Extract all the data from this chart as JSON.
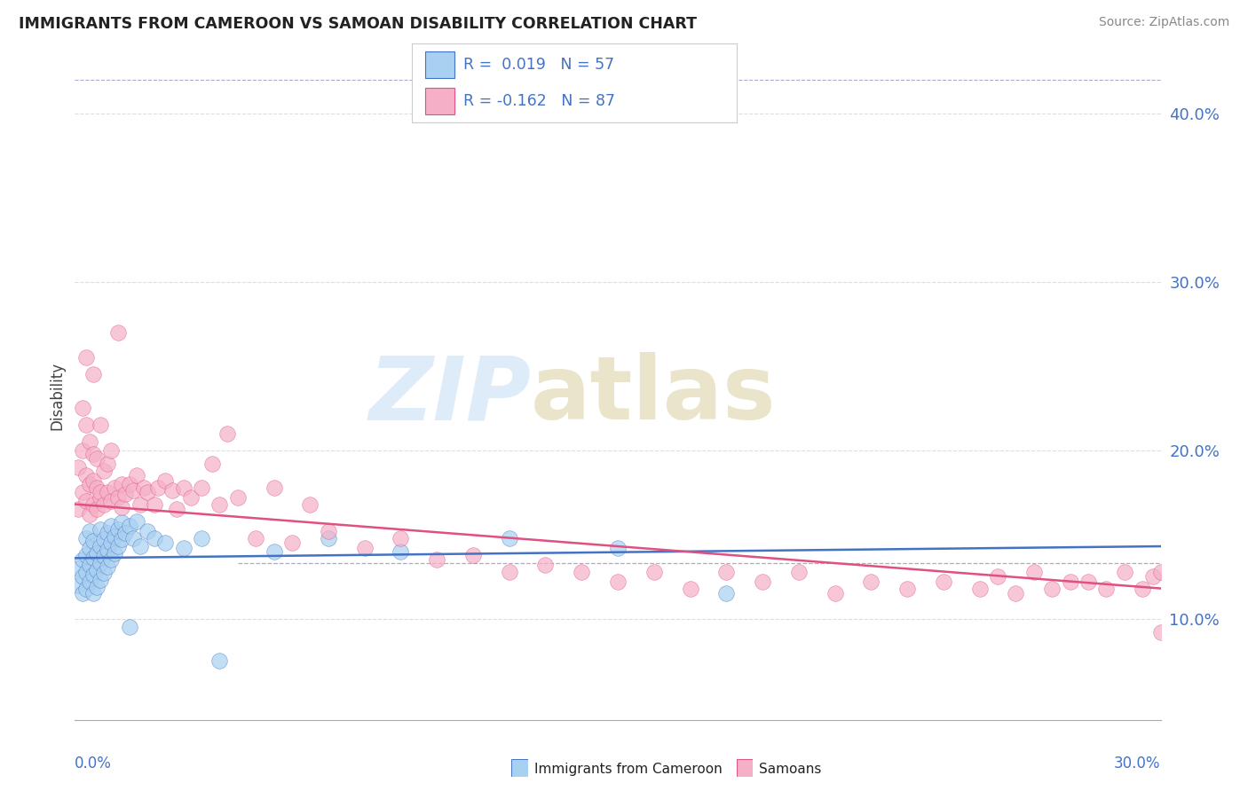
{
  "title": "IMMIGRANTS FROM CAMEROON VS SAMOAN DISABILITY CORRELATION CHART",
  "source": "Source: ZipAtlas.com",
  "ylabel": "Disability",
  "xmin": 0.0,
  "xmax": 0.3,
  "ymin": 0.04,
  "ymax": 0.425,
  "yticks": [
    0.1,
    0.2,
    0.3,
    0.4
  ],
  "ytick_labels": [
    "10.0%",
    "20.0%",
    "30.0%",
    "40.0%"
  ],
  "blue_color": "#a8d0f0",
  "pink_color": "#f5b0c8",
  "line_blue": "#4472c4",
  "line_pink": "#e05080",
  "dashed_line_color": "#aaaacc",
  "grid_color": "#dddddd",
  "blue_line_y0": 0.136,
  "blue_line_y1": 0.143,
  "pink_line_y0": 0.168,
  "pink_line_y1": 0.118,
  "blue_scatter_x": [
    0.001,
    0.001,
    0.002,
    0.002,
    0.002,
    0.003,
    0.003,
    0.003,
    0.003,
    0.004,
    0.004,
    0.004,
    0.004,
    0.005,
    0.005,
    0.005,
    0.005,
    0.006,
    0.006,
    0.006,
    0.007,
    0.007,
    0.007,
    0.007,
    0.008,
    0.008,
    0.008,
    0.009,
    0.009,
    0.009,
    0.01,
    0.01,
    0.01,
    0.011,
    0.011,
    0.012,
    0.012,
    0.013,
    0.013,
    0.014,
    0.015,
    0.015,
    0.016,
    0.017,
    0.018,
    0.02,
    0.022,
    0.025,
    0.03,
    0.035,
    0.04,
    0.055,
    0.07,
    0.09,
    0.12,
    0.15,
    0.18
  ],
  "blue_scatter_y": [
    0.12,
    0.13,
    0.125,
    0.135,
    0.115,
    0.128,
    0.138,
    0.148,
    0.118,
    0.122,
    0.132,
    0.142,
    0.152,
    0.126,
    0.136,
    0.146,
    0.115,
    0.119,
    0.129,
    0.139,
    0.123,
    0.133,
    0.143,
    0.153,
    0.127,
    0.137,
    0.147,
    0.131,
    0.141,
    0.151,
    0.135,
    0.145,
    0.155,
    0.139,
    0.149,
    0.143,
    0.153,
    0.147,
    0.157,
    0.151,
    0.095,
    0.155,
    0.148,
    0.158,
    0.143,
    0.152,
    0.148,
    0.145,
    0.142,
    0.148,
    0.075,
    0.14,
    0.148,
    0.14,
    0.148,
    0.142,
    0.115
  ],
  "pink_scatter_x": [
    0.001,
    0.001,
    0.002,
    0.002,
    0.002,
    0.003,
    0.003,
    0.003,
    0.003,
    0.004,
    0.004,
    0.004,
    0.005,
    0.005,
    0.005,
    0.005,
    0.006,
    0.006,
    0.006,
    0.007,
    0.007,
    0.007,
    0.008,
    0.008,
    0.009,
    0.009,
    0.01,
    0.01,
    0.011,
    0.012,
    0.012,
    0.013,
    0.013,
    0.014,
    0.015,
    0.016,
    0.017,
    0.018,
    0.019,
    0.02,
    0.022,
    0.023,
    0.025,
    0.027,
    0.028,
    0.03,
    0.032,
    0.035,
    0.038,
    0.04,
    0.042,
    0.045,
    0.05,
    0.055,
    0.06,
    0.065,
    0.07,
    0.08,
    0.09,
    0.1,
    0.11,
    0.12,
    0.13,
    0.14,
    0.15,
    0.16,
    0.17,
    0.18,
    0.19,
    0.2,
    0.21,
    0.22,
    0.23,
    0.24,
    0.25,
    0.255,
    0.26,
    0.265,
    0.27,
    0.275,
    0.28,
    0.285,
    0.29,
    0.295,
    0.298,
    0.3,
    0.3
  ],
  "pink_scatter_y": [
    0.165,
    0.19,
    0.175,
    0.2,
    0.225,
    0.17,
    0.185,
    0.215,
    0.255,
    0.162,
    0.18,
    0.205,
    0.168,
    0.182,
    0.198,
    0.245,
    0.165,
    0.178,
    0.195,
    0.172,
    0.215,
    0.175,
    0.168,
    0.188,
    0.175,
    0.192,
    0.17,
    0.2,
    0.178,
    0.172,
    0.27,
    0.166,
    0.18,
    0.174,
    0.18,
    0.176,
    0.185,
    0.168,
    0.178,
    0.175,
    0.168,
    0.178,
    0.182,
    0.176,
    0.165,
    0.178,
    0.172,
    0.178,
    0.192,
    0.168,
    0.21,
    0.172,
    0.148,
    0.178,
    0.145,
    0.168,
    0.152,
    0.142,
    0.148,
    0.135,
    0.138,
    0.128,
    0.132,
    0.128,
    0.122,
    0.128,
    0.118,
    0.128,
    0.122,
    0.128,
    0.115,
    0.122,
    0.118,
    0.122,
    0.118,
    0.125,
    0.115,
    0.128,
    0.118,
    0.122,
    0.122,
    0.118,
    0.128,
    0.118,
    0.125,
    0.128,
    0.092
  ]
}
